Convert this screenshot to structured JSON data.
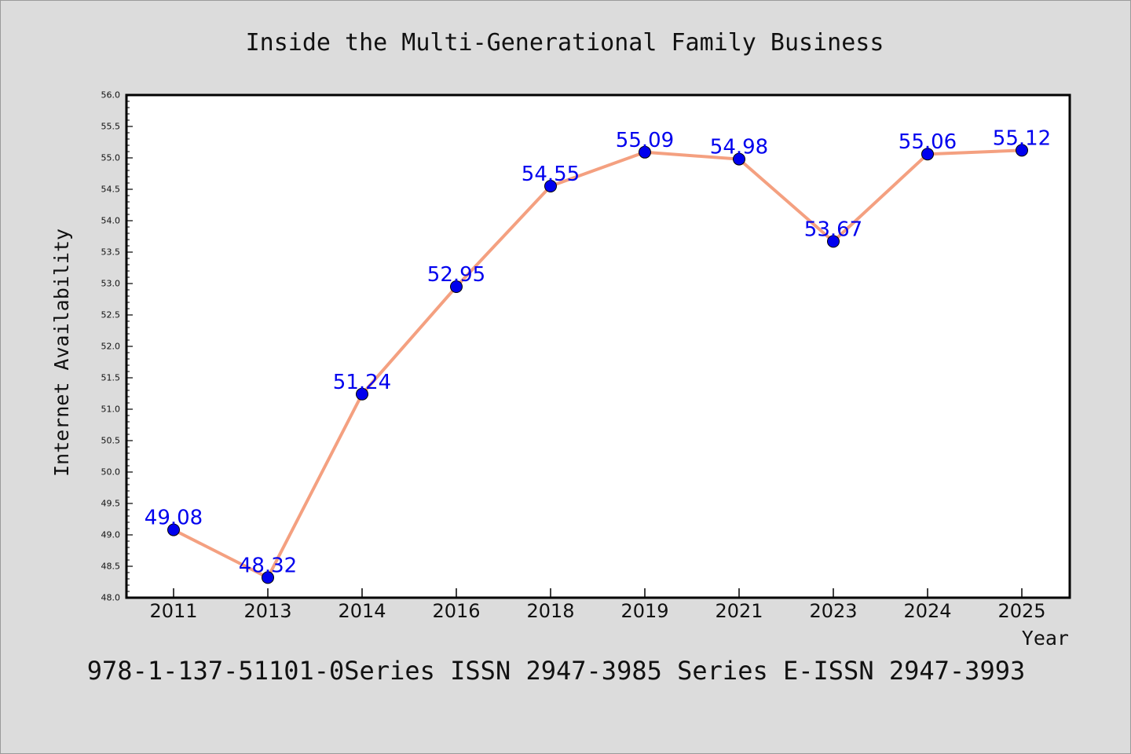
{
  "chart_data": {
    "type": "line",
    "title": "Inside the Multi-Generational Family Business",
    "xlabel": "Year",
    "ylabel": "Internet Availability",
    "categories": [
      "2011",
      "2013",
      "2014",
      "2016",
      "2018",
      "2019",
      "2021",
      "2023",
      "2024",
      "2025"
    ],
    "series": [
      {
        "values": [
          49.08,
          48.32,
          51.24,
          52.95,
          54.55,
          55.09,
          54.98,
          53.67,
          55.06,
          55.12
        ],
        "labels": [
          "49.08",
          "48.32",
          "51.24",
          "52.95",
          "54.55",
          "55.09",
          "54.98",
          "53.67",
          "55.06",
          "55.12"
        ],
        "line_color": "#f4a080",
        "marker_color": "#0000ee",
        "label_color": "#0000ee"
      }
    ],
    "ylim": [
      48.0,
      56.0
    ],
    "yticks": [
      "48.0",
      "48.5",
      "49.0",
      "49.5",
      "50.0",
      "50.5",
      "51.0",
      "51.5",
      "52.0",
      "52.5",
      "53.0",
      "53.5",
      "54.0",
      "54.5",
      "55.0",
      "55.5",
      "56.0"
    ],
    "grid": false,
    "legend": "none"
  },
  "footer": {
    "text": "978-1-137-51101-0Series ISSN 2947-3985 Series E-ISSN 2947-3993"
  },
  "colors": {
    "background": "#dcdcdc",
    "plot_background": "#ffffff",
    "text": "#111111"
  }
}
